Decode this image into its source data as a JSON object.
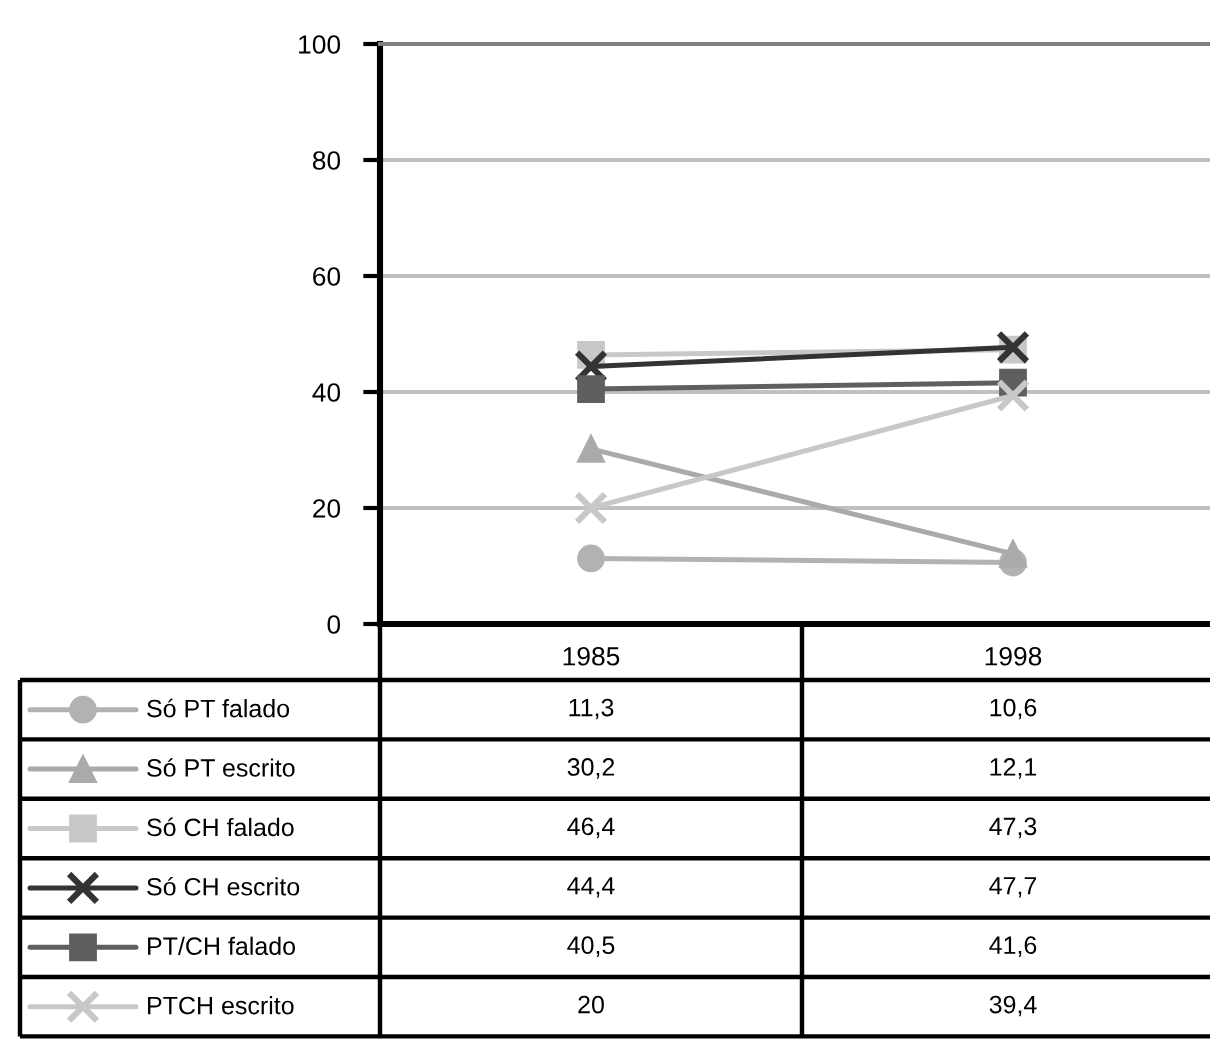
{
  "chart_data": {
    "type": "line",
    "categories": [
      "1985",
      "1998"
    ],
    "ylim": [
      0,
      100
    ],
    "yticks": [
      0,
      20,
      40,
      60,
      80,
      100
    ],
    "grid": "y",
    "legend": "bottom",
    "line_style": "solid",
    "series": [
      {
        "name": "Só PT falado",
        "color": "#b2b2b2",
        "marker": "circle",
        "values": [
          11.3,
          10.6
        ],
        "value_labels": [
          "11,3",
          "10,6"
        ]
      },
      {
        "name": "Só PT escrito",
        "color": "#aaaaaa",
        "marker": "triangle",
        "values": [
          30.2,
          12.1
        ],
        "value_labels": [
          "30,2",
          "12,1"
        ]
      },
      {
        "name": "Só CH falado",
        "color": "#c8c8c8",
        "marker": "square",
        "values": [
          46.4,
          47.3
        ],
        "value_labels": [
          "46,4",
          "47,3"
        ]
      },
      {
        "name": "Só CH escrito",
        "color": "#333333",
        "marker": "cross",
        "values": [
          44.4,
          47.7
        ],
        "value_labels": [
          "44,4",
          "47,7"
        ]
      },
      {
        "name": "PT/CH falado",
        "color": "#5f5f5f",
        "marker": "square",
        "values": [
          40.5,
          41.6
        ],
        "value_labels": [
          "40,5",
          "41,6"
        ]
      },
      {
        "name": "PTCH escrito",
        "color": "#c8c8c8",
        "marker": "cross",
        "values": [
          20,
          39.4
        ],
        "value_labels": [
          "20",
          "39,4"
        ]
      }
    ]
  }
}
